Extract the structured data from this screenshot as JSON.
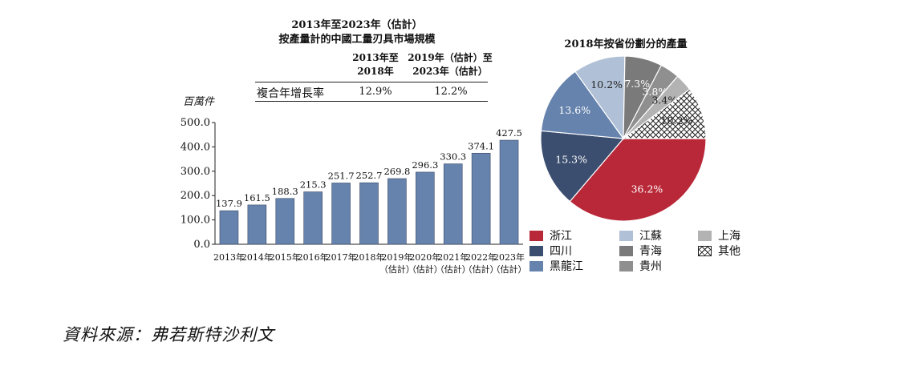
{
  "bar_section": {
    "title_line1": "2013年至2023年（估計）",
    "title_line2": "按產量計的中國工量刃具市場規模",
    "unit": "百萬件",
    "cagr": {
      "col1_header": [
        "2013年至",
        "2018年"
      ],
      "col2_header": [
        "2019年（估計）至",
        "2023年（估計）"
      ],
      "row_label": "複合年增長率",
      "col1_value": "12.9%",
      "col2_value": "12.2%"
    }
  },
  "pie_section": {
    "title": "2018年按省份劃分的產量"
  },
  "source": "資料來源：弗若斯特沙利文",
  "colors": {
    "bar": "#6683ad",
    "zhejiang": "#b92838",
    "sichuan": "#3b4e6f",
    "heilongjiang": "#6683ad",
    "jiangsu": "#b0c0d6",
    "qinghai": "#7a7a7a",
    "guizhou": "#8f8f8f",
    "shanghai": "#b3b3b3",
    "other": "hatched"
  },
  "chart_data": [
    {
      "type": "bar",
      "title": "2013年至2023年（估計）按產量計的中國工量刃具市場規模",
      "ylabel": "百萬件",
      "categories": [
        [
          "2013年"
        ],
        [
          "2014年"
        ],
        [
          "2015年"
        ],
        [
          "2016年"
        ],
        [
          "2017年"
        ],
        [
          "2018年"
        ],
        [
          "2019年",
          "（估計）"
        ],
        [
          "2020年",
          "（估計）"
        ],
        [
          "2021年",
          "（估計）"
        ],
        [
          "2022年",
          "（估計）"
        ],
        [
          "2023年",
          "（估計）"
        ]
      ],
      "values": [
        137.9,
        161.5,
        188.3,
        215.3,
        251.7,
        252.7,
        269.8,
        296.3,
        330.3,
        374.1,
        427.5
      ],
      "value_labels": [
        "137.9",
        "161.5",
        "188.3",
        "215.3",
        "251.7",
        "252.7",
        "269.8",
        "296.3",
        "330.3",
        "374.1",
        "427.5"
      ],
      "ylim": [
        0,
        500
      ],
      "yticks": [
        0,
        100,
        200,
        300,
        400,
        500
      ],
      "ytick_labels": [
        "0.0",
        "100.0",
        "200.0",
        "300.0",
        "400.0",
        "500.0"
      ],
      "grid": false
    },
    {
      "type": "pie",
      "title": "2018年按省份劃分的產量",
      "slices": [
        {
          "name": "浙江",
          "value": 36.2,
          "label": "36.2%",
          "color": "#b92838"
        },
        {
          "name": "四川",
          "value": 15.3,
          "label": "15.3%",
          "color": "#3b4e6f"
        },
        {
          "name": "黑龍江",
          "value": 13.6,
          "label": "13.6%",
          "color": "#6683ad"
        },
        {
          "name": "江蘇",
          "value": 10.2,
          "label": "10.2%",
          "color": "#b0c0d6"
        },
        {
          "name": "青海",
          "value": 7.3,
          "label": "7.3%",
          "color": "#7a7a7a"
        },
        {
          "name": "貴州",
          "value": 3.8,
          "label": "3.8%",
          "color": "#8f8f8f"
        },
        {
          "name": "上海",
          "value": 3.4,
          "label": "3.4%",
          "color": "#b3b3b3"
        },
        {
          "name": "其他",
          "value": 10.2,
          "label": "10.2%",
          "color": "hatched"
        }
      ],
      "legend": [
        {
          "name": "浙江",
          "color": "#b92838"
        },
        {
          "name": "江蘇",
          "color": "#b0c0d6"
        },
        {
          "name": "上海",
          "color": "#b3b3b3"
        },
        {
          "name": "四川",
          "color": "#3b4e6f"
        },
        {
          "name": "青海",
          "color": "#7a7a7a"
        },
        {
          "name": "其他",
          "color": "hatched"
        },
        {
          "name": "黑龍江",
          "color": "#6683ad"
        },
        {
          "name": "貴州",
          "color": "#8f8f8f"
        }
      ],
      "legend_placement": "bottom"
    }
  ]
}
